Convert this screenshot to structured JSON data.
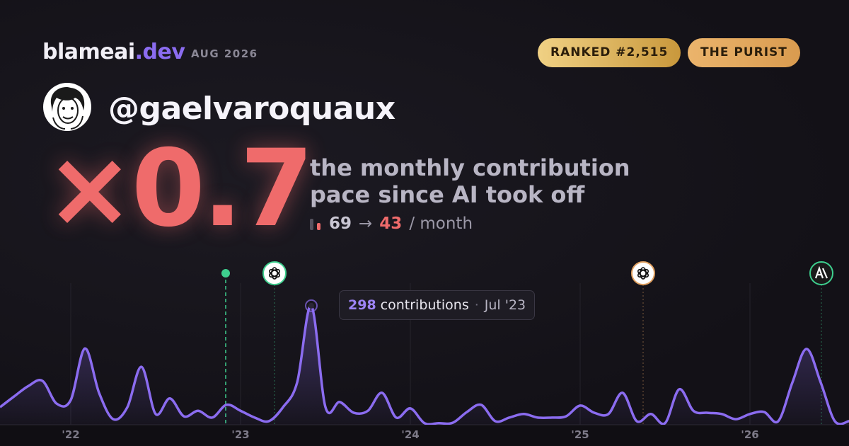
{
  "header": {
    "brand": "blameai",
    "brand_suffix": ".dev",
    "date": "AUG 2026",
    "badges": [
      "RANKED #2,515",
      "THE PURIST"
    ]
  },
  "profile": {
    "handle": "@gaelvaroquaux"
  },
  "headline": {
    "multiplier": "×0.7",
    "description": [
      "the monthly contribution",
      "pace since AI took off"
    ],
    "before": "69",
    "arrow": "→",
    "after": "43",
    "unit": "/ month"
  },
  "chart_data": {
    "type": "line",
    "categories": [
      null,
      null,
      null,
      null,
      null,
      "'22",
      null,
      null,
      null,
      null,
      null,
      null,
      null,
      null,
      null,
      null,
      null,
      "'23",
      null,
      null,
      null,
      null,
      null,
      null,
      null,
      null,
      null,
      null,
      null,
      "'24",
      null,
      null,
      null,
      null,
      null,
      null,
      null,
      null,
      null,
      null,
      null,
      "'25",
      null,
      null,
      null,
      null,
      null,
      null,
      null,
      null,
      null,
      null,
      null,
      "'26",
      null,
      null,
      null,
      null,
      null,
      null,
      null
    ],
    "values": [
      44,
      71,
      97,
      110,
      53,
      62,
      191,
      80,
      14,
      44,
      145,
      27,
      66,
      21,
      35,
      18,
      50,
      35,
      18,
      9,
      44,
      106,
      298,
      44,
      57,
      30,
      35,
      80,
      18,
      41,
      4,
      4,
      5,
      32,
      50,
      9,
      18,
      27,
      18,
      18,
      21,
      48,
      30,
      27,
      80,
      9,
      27,
      4,
      89,
      35,
      30,
      27,
      14,
      27,
      32,
      9,
      106,
      190,
      106,
      9,
      9
    ],
    "color": "#8b6cf0",
    "ylim": [
      0,
      390
    ],
    "tooltip": {
      "label": "contributions",
      "date": "Jul '23"
    }
  }
}
